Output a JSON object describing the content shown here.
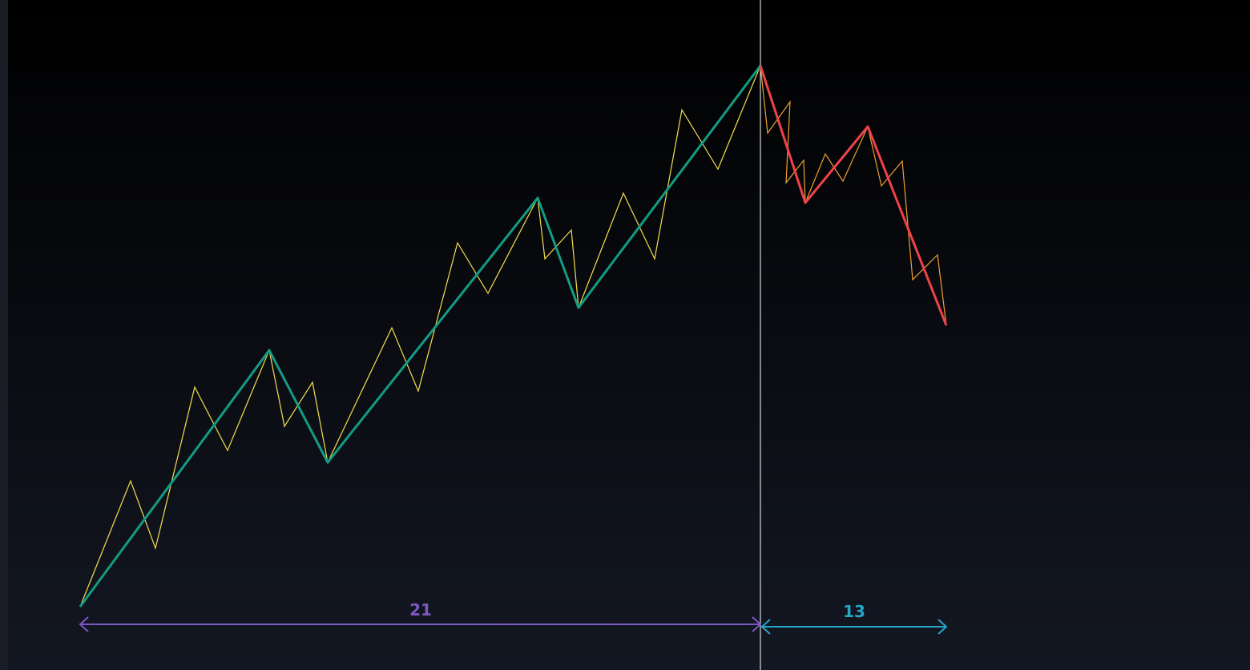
{
  "measures": [
    {
      "label": 21
    },
    {
      "label": 13
    }
  ]
}
